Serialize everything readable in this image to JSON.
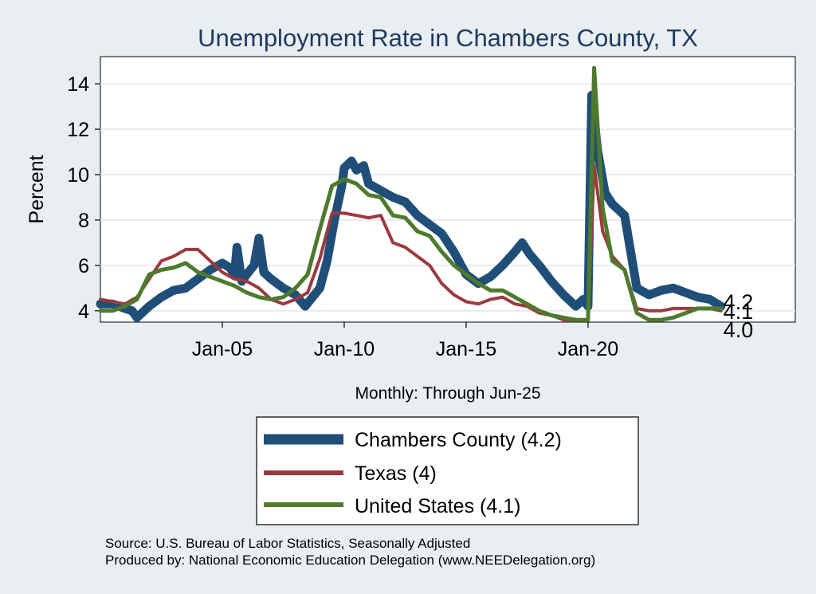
{
  "chart_data": {
    "type": "line",
    "title": "Unemployment Rate in Chambers  County, TX",
    "ylabel": "Percent",
    "xlabel": "Monthly: Through Jun-25",
    "xlim": [
      2000.0,
      2028.5
    ],
    "ylim": [
      3.5,
      15.2
    ],
    "y_ticks": [
      4,
      6,
      8,
      10,
      12,
      14
    ],
    "x_ticks": [
      {
        "value": 2005.0,
        "label": "Jan-05"
      },
      {
        "value": 2010.0,
        "label": "Jan-10"
      },
      {
        "value": 2015.0,
        "label": "Jan-15"
      },
      {
        "value": 2020.0,
        "label": "Jan-20"
      }
    ],
    "grid": true,
    "series": [
      {
        "name": "Chambers  County",
        "legend_label": "Chambers  County (4.2)",
        "color": "#1f4e79",
        "end_value": "4.2",
        "points": [
          [
            2000.0,
            4.3
          ],
          [
            2000.5,
            4.3
          ],
          [
            2001.0,
            4.1
          ],
          [
            2001.3,
            4.0
          ],
          [
            2001.5,
            3.7
          ],
          [
            2001.8,
            4.0
          ],
          [
            2002.0,
            4.2
          ],
          [
            2002.5,
            4.6
          ],
          [
            2003.0,
            4.9
          ],
          [
            2003.5,
            5.0
          ],
          [
            2004.0,
            5.4
          ],
          [
            2004.5,
            5.8
          ],
          [
            2005.0,
            6.1
          ],
          [
            2005.3,
            5.9
          ],
          [
            2005.5,
            5.6
          ],
          [
            2005.6,
            6.8
          ],
          [
            2005.8,
            5.3
          ],
          [
            2006.0,
            5.6
          ],
          [
            2006.3,
            6.0
          ],
          [
            2006.5,
            7.2
          ],
          [
            2006.7,
            5.7
          ],
          [
            2007.0,
            5.4
          ],
          [
            2007.5,
            5.0
          ],
          [
            2008.0,
            4.7
          ],
          [
            2008.4,
            4.2
          ],
          [
            2008.7,
            4.6
          ],
          [
            2009.0,
            5.0
          ],
          [
            2009.3,
            6.2
          ],
          [
            2009.6,
            8.0
          ],
          [
            2009.9,
            9.5
          ],
          [
            2010.0,
            10.3
          ],
          [
            2010.3,
            10.6
          ],
          [
            2010.5,
            10.2
          ],
          [
            2010.8,
            10.4
          ],
          [
            2011.0,
            9.6
          ],
          [
            2011.5,
            9.3
          ],
          [
            2012.0,
            9.0
          ],
          [
            2012.5,
            8.8
          ],
          [
            2013.0,
            8.2
          ],
          [
            2013.5,
            7.8
          ],
          [
            2014.0,
            7.4
          ],
          [
            2014.5,
            6.6
          ],
          [
            2015.0,
            5.6
          ],
          [
            2015.5,
            5.2
          ],
          [
            2016.0,
            5.5
          ],
          [
            2016.5,
            6.0
          ],
          [
            2017.0,
            6.6
          ],
          [
            2017.3,
            7.0
          ],
          [
            2017.6,
            6.5
          ],
          [
            2018.0,
            6.0
          ],
          [
            2018.5,
            5.3
          ],
          [
            2019.0,
            4.7
          ],
          [
            2019.5,
            4.2
          ],
          [
            2019.8,
            4.5
          ],
          [
            2020.0,
            4.2
          ],
          [
            2020.15,
            13.5
          ],
          [
            2020.4,
            11.0
          ],
          [
            2020.7,
            9.2
          ],
          [
            2021.0,
            8.7
          ],
          [
            2021.5,
            8.2
          ],
          [
            2022.0,
            5.0
          ],
          [
            2022.5,
            4.7
          ],
          [
            2023.0,
            4.9
          ],
          [
            2023.5,
            5.0
          ],
          [
            2024.0,
            4.8
          ],
          [
            2024.5,
            4.6
          ],
          [
            2025.0,
            4.5
          ],
          [
            2025.45,
            4.2
          ]
        ]
      },
      {
        "name": "Texas",
        "legend_label": "Texas (4)",
        "color": "#9b3a3f",
        "end_value": "4.0",
        "points": [
          [
            2000.0,
            4.5
          ],
          [
            2000.5,
            4.4
          ],
          [
            2001.0,
            4.3
          ],
          [
            2001.5,
            4.6
          ],
          [
            2002.0,
            5.4
          ],
          [
            2002.5,
            6.2
          ],
          [
            2003.0,
            6.4
          ],
          [
            2003.5,
            6.7
          ],
          [
            2004.0,
            6.7
          ],
          [
            2004.5,
            6.2
          ],
          [
            2005.0,
            5.7
          ],
          [
            2005.5,
            5.4
          ],
          [
            2006.0,
            5.3
          ],
          [
            2006.5,
            5.0
          ],
          [
            2007.0,
            4.5
          ],
          [
            2007.5,
            4.3
          ],
          [
            2008.0,
            4.5
          ],
          [
            2008.5,
            4.8
          ],
          [
            2009.0,
            6.3
          ],
          [
            2009.5,
            8.3
          ],
          [
            2010.0,
            8.3
          ],
          [
            2010.5,
            8.2
          ],
          [
            2011.0,
            8.1
          ],
          [
            2011.5,
            8.2
          ],
          [
            2012.0,
            7.0
          ],
          [
            2012.5,
            6.8
          ],
          [
            2013.0,
            6.4
          ],
          [
            2013.5,
            6.0
          ],
          [
            2014.0,
            5.2
          ],
          [
            2014.5,
            4.7
          ],
          [
            2015.0,
            4.4
          ],
          [
            2015.5,
            4.3
          ],
          [
            2016.0,
            4.5
          ],
          [
            2016.5,
            4.6
          ],
          [
            2017.0,
            4.3
          ],
          [
            2017.5,
            4.2
          ],
          [
            2018.0,
            3.9
          ],
          [
            2018.5,
            3.8
          ],
          [
            2019.0,
            3.6
          ],
          [
            2019.5,
            3.6
          ],
          [
            2020.0,
            3.6
          ],
          [
            2020.25,
            10.4
          ],
          [
            2020.6,
            7.5
          ],
          [
            2021.0,
            6.4
          ],
          [
            2021.5,
            5.8
          ],
          [
            2022.0,
            4.1
          ],
          [
            2022.5,
            4.0
          ],
          [
            2023.0,
            4.0
          ],
          [
            2023.5,
            4.1
          ],
          [
            2024.0,
            4.1
          ],
          [
            2024.5,
            4.1
          ],
          [
            2025.0,
            4.1
          ],
          [
            2025.45,
            4.0
          ]
        ]
      },
      {
        "name": "United States",
        "legend_label": "United States (4.1)",
        "color": "#4e7a2e",
        "end_value": "4.1",
        "points": [
          [
            2000.0,
            4.0
          ],
          [
            2000.5,
            4.0
          ],
          [
            2001.0,
            4.2
          ],
          [
            2001.5,
            4.5
          ],
          [
            2002.0,
            5.6
          ],
          [
            2002.5,
            5.8
          ],
          [
            2003.0,
            5.9
          ],
          [
            2003.5,
            6.1
          ],
          [
            2004.0,
            5.7
          ],
          [
            2004.5,
            5.5
          ],
          [
            2005.0,
            5.3
          ],
          [
            2005.5,
            5.1
          ],
          [
            2006.0,
            4.8
          ],
          [
            2006.5,
            4.6
          ],
          [
            2007.0,
            4.5
          ],
          [
            2007.5,
            4.6
          ],
          [
            2008.0,
            5.0
          ],
          [
            2008.5,
            5.6
          ],
          [
            2009.0,
            7.6
          ],
          [
            2009.5,
            9.5
          ],
          [
            2010.0,
            9.8
          ],
          [
            2010.5,
            9.6
          ],
          [
            2011.0,
            9.1
          ],
          [
            2011.5,
            9.0
          ],
          [
            2012.0,
            8.2
          ],
          [
            2012.5,
            8.1
          ],
          [
            2013.0,
            7.5
          ],
          [
            2013.5,
            7.3
          ],
          [
            2014.0,
            6.6
          ],
          [
            2014.5,
            6.0
          ],
          [
            2015.0,
            5.6
          ],
          [
            2015.5,
            5.2
          ],
          [
            2016.0,
            4.9
          ],
          [
            2016.5,
            4.9
          ],
          [
            2017.0,
            4.6
          ],
          [
            2017.5,
            4.3
          ],
          [
            2018.0,
            4.0
          ],
          [
            2018.5,
            3.8
          ],
          [
            2019.0,
            3.7
          ],
          [
            2019.5,
            3.6
          ],
          [
            2020.0,
            3.6
          ],
          [
            2020.25,
            14.7
          ],
          [
            2020.6,
            8.5
          ],
          [
            2021.0,
            6.2
          ],
          [
            2021.5,
            5.8
          ],
          [
            2022.0,
            3.9
          ],
          [
            2022.5,
            3.6
          ],
          [
            2023.0,
            3.6
          ],
          [
            2023.5,
            3.7
          ],
          [
            2024.0,
            3.9
          ],
          [
            2024.5,
            4.1
          ],
          [
            2025.0,
            4.1
          ],
          [
            2025.45,
            4.1
          ]
        ]
      }
    ]
  },
  "source": {
    "line1": "Source: U.S. Bureau of Labor Statistics, Seasonally Adjusted",
    "line2": "Produced by: National Economic Education Delegation (www.NEEDelegation.org)"
  }
}
